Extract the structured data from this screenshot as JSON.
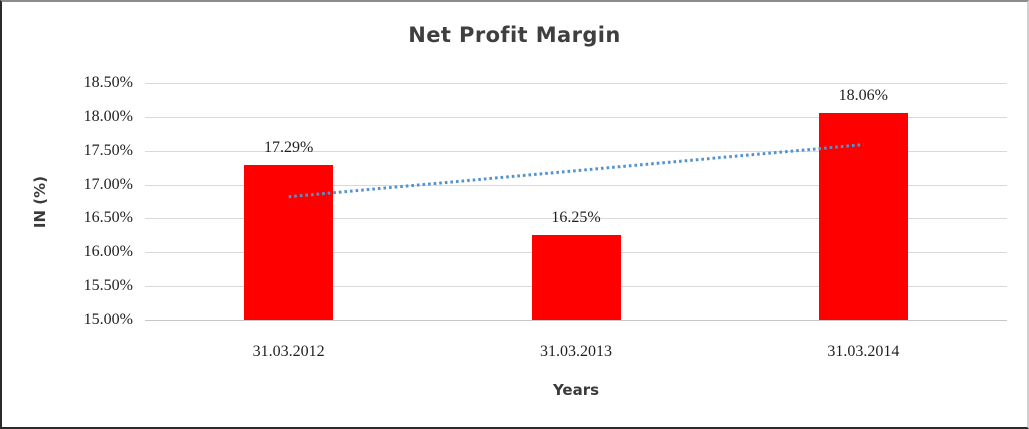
{
  "chart_data": {
    "type": "bar",
    "title": "Net Profit Margin",
    "xlabel": "Years",
    "ylabel": "IN (%)",
    "categories": [
      "31.03.2012",
      "31.03.2013",
      "31.03.2014"
    ],
    "values": [
      17.29,
      16.25,
      18.06
    ],
    "data_labels": [
      "17.29%",
      "16.25%",
      "18.06%"
    ],
    "ylim": [
      15.0,
      18.5
    ],
    "ytick_step": 0.5,
    "ytick_labels": [
      "15.00%",
      "15.50%",
      "16.00%",
      "16.50%",
      "17.00%",
      "17.50%",
      "18.00%",
      "18.50%"
    ],
    "grid": true,
    "legend": false,
    "bar_color": "#FF0000",
    "gridline_color": "#D9D9D9",
    "baseline_color": "#C6C6C6",
    "text_color": "#1F1F1F",
    "title_color": "#3F3F3F",
    "trendline": {
      "type": "linear-dotted",
      "color": "#5293CF",
      "start_value": 16.82,
      "end_value": 17.59
    }
  }
}
